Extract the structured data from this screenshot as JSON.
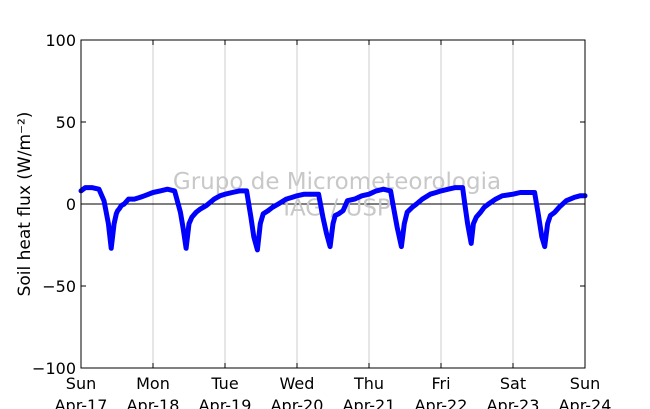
{
  "chart_data": {
    "type": "line",
    "title": "",
    "xlabel": "",
    "ylabel": "Soil heat flux (W/m⁻²)",
    "ylim": [
      -100,
      100
    ],
    "xlim": [
      0,
      7
    ],
    "yticks": [
      -100,
      -50,
      0,
      50,
      100
    ],
    "yticks_text": [
      "−100",
      "−50",
      "0",
      "50",
      "100"
    ],
    "xticks": [
      {
        "pos": 0,
        "line1": "Sun",
        "line2": "Apr-17"
      },
      {
        "pos": 1,
        "line1": "Mon",
        "line2": "Apr-18"
      },
      {
        "pos": 2,
        "line1": "Tue",
        "line2": "Apr-19"
      },
      {
        "pos": 3,
        "line1": "Wed",
        "line2": "Apr-20"
      },
      {
        "pos": 4,
        "line1": "Thu",
        "line2": "Apr-21"
      },
      {
        "pos": 5,
        "line1": "Fri",
        "line2": "Apr-22"
      },
      {
        "pos": 6,
        "line1": "Sat",
        "line2": "Apr-23"
      },
      {
        "pos": 7,
        "line1": "Sun",
        "line2": "Apr-24"
      }
    ],
    "grid": "vertical",
    "zero_line": true,
    "watermark": [
      "Grupo de Micrometeorologia",
      "IAG / USP"
    ],
    "series": [
      {
        "color": "#0000ff",
        "x": [
          0,
          0.06,
          0.15,
          0.25,
          0.32,
          0.38,
          0.42,
          0.46,
          0.49,
          0.51,
          0.53,
          0.56,
          0.6,
          0.66,
          0.74,
          0.82,
          0.88,
          1.0,
          1.1,
          1.2,
          1.3,
          1.38,
          1.42,
          1.46,
          1.5,
          1.54,
          1.6,
          1.66,
          1.74,
          1.85,
          1.93,
          2.0,
          2.1,
          2.2,
          2.3,
          2.36,
          2.4,
          2.45,
          2.49,
          2.53,
          2.6,
          2.66,
          2.74,
          2.85,
          2.93,
          3.0,
          3.1,
          3.2,
          3.3,
          3.36,
          3.41,
          3.46,
          3.5,
          3.53,
          3.58,
          3.64,
          3.7,
          3.8,
          3.9,
          4.0,
          4.1,
          4.2,
          4.3,
          4.34,
          4.39,
          4.45,
          4.49,
          4.53,
          4.6,
          4.66,
          4.74,
          4.85,
          4.93,
          5.0,
          5.1,
          5.2,
          5.3,
          5.33,
          5.37,
          5.42,
          5.45,
          5.49,
          5.55,
          5.6,
          5.66,
          5.76,
          5.85,
          6.0,
          6.1,
          6.2,
          6.3,
          6.35,
          6.4,
          6.44,
          6.48,
          6.52,
          6.58,
          6.64,
          6.74,
          6.85,
          6.93,
          7.0
        ],
        "y": [
          8,
          10,
          10,
          9,
          2,
          -12,
          -27,
          -12,
          -6,
          -4,
          -3,
          -1,
          0,
          3,
          3,
          4,
          5,
          7,
          8,
          9,
          8,
          -5,
          -15,
          -27,
          -12,
          -8,
          -5,
          -3,
          -1,
          3,
          5,
          6,
          7,
          8,
          8,
          -8,
          -20,
          -28,
          -12,
          -6,
          -4,
          -2,
          0,
          3,
          4,
          5,
          6,
          6,
          6,
          -8,
          -18,
          -26,
          -12,
          -7,
          -6,
          -4,
          2,
          3,
          5,
          6,
          8,
          9,
          8,
          -2,
          -14,
          -26,
          -12,
          -5,
          -2,
          0,
          3,
          6,
          7,
          8,
          9,
          10,
          10,
          0,
          -12,
          -24,
          -12,
          -8,
          -5,
          -2,
          0,
          3,
          5,
          6,
          7,
          7,
          7,
          -6,
          -20,
          -26,
          -12,
          -7,
          -5,
          -2,
          2,
          4,
          5,
          5
        ]
      }
    ]
  }
}
